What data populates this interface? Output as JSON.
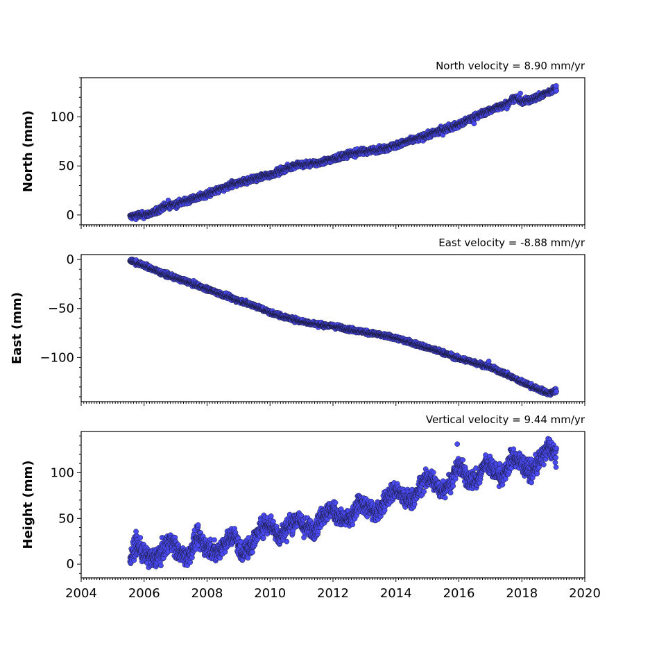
{
  "chart_data": [
    {
      "type": "scatter",
      "title": "North velocity = 8.90 mm/yr",
      "xlabel": "",
      "ylabel": "North (mm)",
      "xlim": [
        2004,
        2020
      ],
      "ylim": [
        -10,
        140
      ],
      "yticks": [
        0,
        50,
        100
      ],
      "yticklabels": [
        "0",
        "50",
        "100"
      ],
      "grid": false,
      "marker_color": "#4a4af4",
      "marker_edge": "#1a1a3a",
      "series": [
        {
          "x": [
            2005.55,
            2005.8,
            2006.0,
            2006.3,
            2006.6,
            2007.0,
            2007.5,
            2008.0,
            2008.5,
            2009.0,
            2009.5,
            2010.0,
            2010.5,
            2010.9,
            2011.0,
            2011.5,
            2012.0,
            2012.5,
            2013.0,
            2013.5,
            2014.0,
            2014.5,
            2015.0,
            2015.5,
            2016.0,
            2016.5,
            2017.0,
            2017.5,
            2017.8,
            2018.0,
            2018.5,
            2019.1
          ],
          "y": [
            -2,
            0,
            0,
            2,
            8,
            11,
            16,
            21,
            27,
            33,
            37,
            41,
            47,
            52,
            51,
            53,
            57,
            62,
            65,
            67,
            71,
            76,
            81,
            87,
            92,
            100,
            107,
            113,
            120,
            115,
            120,
            129
          ]
        }
      ]
    },
    {
      "type": "scatter",
      "title": "East velocity = -8.88 mm/yr",
      "xlabel": "",
      "ylabel": "East (mm)",
      "xlim": [
        2004,
        2020
      ],
      "ylim": [
        -145,
        5
      ],
      "yticks": [
        0,
        -50,
        -100
      ],
      "yticklabels": [
        "0",
        "−50",
        "−100"
      ],
      "grid": false,
      "marker_color": "#4a4af4",
      "marker_edge": "#1a1a3a",
      "series": [
        {
          "x": [
            2005.55,
            2006.0,
            2006.5,
            2007.0,
            2007.5,
            2008.0,
            2008.5,
            2009.0,
            2009.5,
            2010.0,
            2010.5,
            2011.0,
            2011.5,
            2012.0,
            2012.5,
            2013.0,
            2013.5,
            2014.0,
            2014.5,
            2015.0,
            2015.5,
            2016.0,
            2016.5,
            2017.0,
            2017.5,
            2018.0,
            2018.5,
            2018.9,
            2019.1
          ],
          "y": [
            -1,
            -6,
            -13,
            -19,
            -24,
            -30,
            -36,
            -42,
            -47,
            -54,
            -59,
            -63,
            -66,
            -68,
            -71,
            -74,
            -77,
            -80,
            -85,
            -90,
            -95,
            -101,
            -105,
            -110,
            -117,
            -125,
            -132,
            -137,
            -133
          ]
        }
      ]
    },
    {
      "type": "scatter",
      "title": "Vertical velocity = 9.44 mm/yr",
      "xlabel": "",
      "ylabel": "Height (mm)",
      "xlim": [
        2004,
        2020
      ],
      "ylim": [
        -15,
        145
      ],
      "yticks": [
        0,
        50,
        100
      ],
      "yticklabels": [
        "0",
        "50",
        "100"
      ],
      "xticks": [
        2004,
        2006,
        2008,
        2010,
        2012,
        2014,
        2016,
        2018,
        2020
      ],
      "xticklabels": [
        "2004",
        "2006",
        "2008",
        "2010",
        "2012",
        "2014",
        "2016",
        "2018",
        "2020"
      ],
      "grid": false,
      "marker_color": "#4a4af4",
      "marker_edge": "#1a1a3a",
      "series": [
        {
          "x": [
            2005.55,
            2005.75,
            2006.0,
            2006.3,
            2006.6,
            2006.85,
            2007.1,
            2007.4,
            2007.7,
            2008.0,
            2008.3,
            2008.6,
            2008.85,
            2009.1,
            2009.4,
            2009.7,
            2010.0,
            2010.3,
            2010.6,
            2010.85,
            2011.1,
            2011.4,
            2011.7,
            2012.0,
            2012.3,
            2012.6,
            2012.85,
            2013.1,
            2013.4,
            2013.7,
            2014.0,
            2014.3,
            2014.6,
            2014.85,
            2015.1,
            2015.4,
            2015.7,
            2016.0,
            2016.3,
            2016.6,
            2016.85,
            2017.1,
            2017.4,
            2017.7,
            2018.0,
            2018.3,
            2018.6,
            2018.85,
            2019.1
          ],
          "y": [
            5,
            22,
            10,
            5,
            15,
            28,
            12,
            8,
            30,
            18,
            12,
            25,
            32,
            12,
            20,
            40,
            45,
            30,
            42,
            50,
            40,
            38,
            55,
            60,
            48,
            50,
            68,
            62,
            55,
            72,
            82,
            70,
            72,
            90,
            95,
            80,
            88,
            108,
            92,
            92,
            112,
            102,
            95,
            118,
            110,
            100,
            115,
            128,
            120
          ]
        }
      ]
    }
  ]
}
